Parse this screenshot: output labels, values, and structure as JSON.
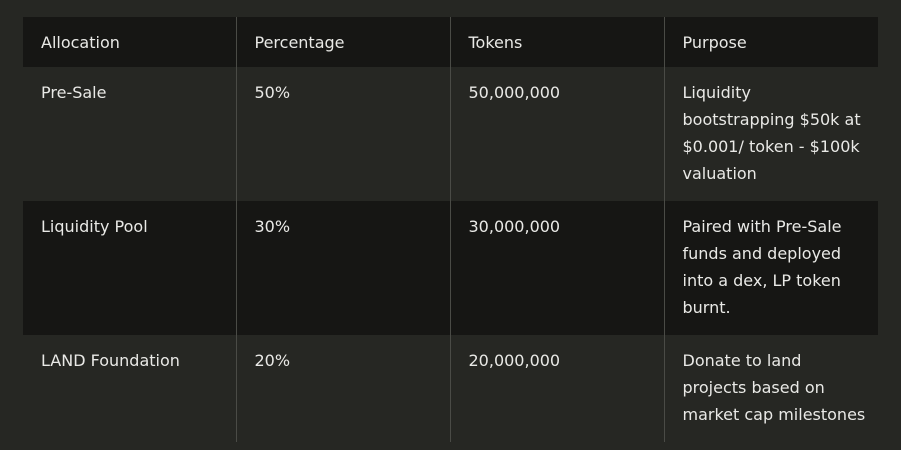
{
  "table": {
    "headers": [
      "Allocation",
      "Percentage",
      "Tokens",
      "Purpose"
    ],
    "rows": [
      {
        "allocation": "Pre-Sale",
        "percentage": "50%",
        "tokens": "50,000,000",
        "purpose": "Liquidity bootstrapping $50k at $0.001/ token - $100k valuation"
      },
      {
        "allocation": "Liquidity Pool",
        "percentage": "30%",
        "tokens": "30,000,000",
        "purpose": "Paired with Pre-Sale funds and deployed into a dex, LP token burnt."
      },
      {
        "allocation": "LAND Foundation",
        "percentage": "20%",
        "tokens": "20,000,000",
        "purpose": "Donate to land projects based on market cap milestones"
      }
    ]
  }
}
